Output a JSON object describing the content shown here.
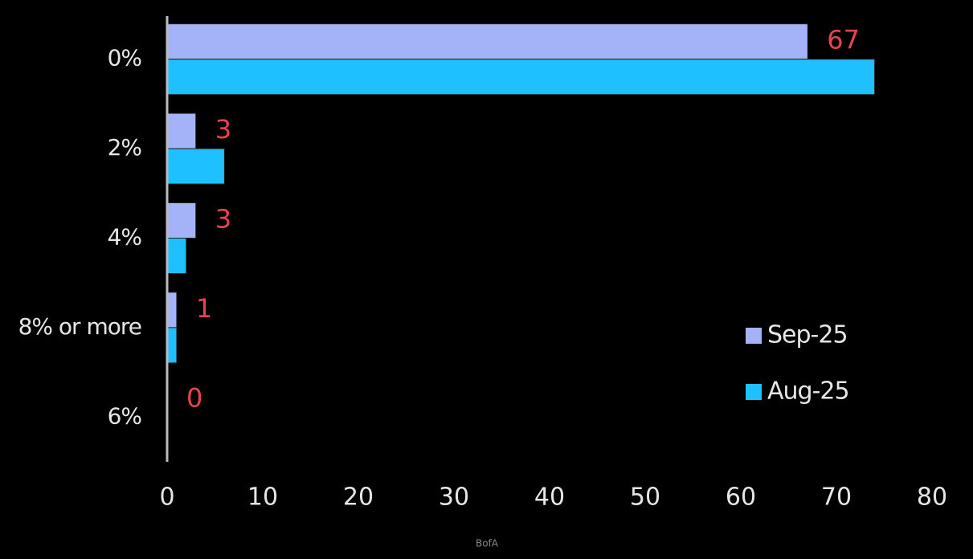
{
  "chart_data": {
    "type": "bar",
    "orientation": "horizontal",
    "categories": [
      "0%",
      "2%",
      "4%",
      "8% or more",
      "6%"
    ],
    "series": [
      {
        "name": "Sep-25",
        "color": "#a4b3f8",
        "values": [
          67,
          3,
          3,
          1,
          0
        ]
      },
      {
        "name": "Aug-25",
        "color": "#1ec0ff",
        "values": [
          74,
          6,
          2,
          1,
          0
        ]
      }
    ],
    "data_labels_series": 0,
    "data_label_color": "#e8444f",
    "xlim": [
      0,
      80
    ],
    "xticks": [
      0,
      10,
      20,
      30,
      40,
      50,
      60,
      70,
      80
    ],
    "grid": false,
    "legend": "right",
    "source": "BofA"
  }
}
